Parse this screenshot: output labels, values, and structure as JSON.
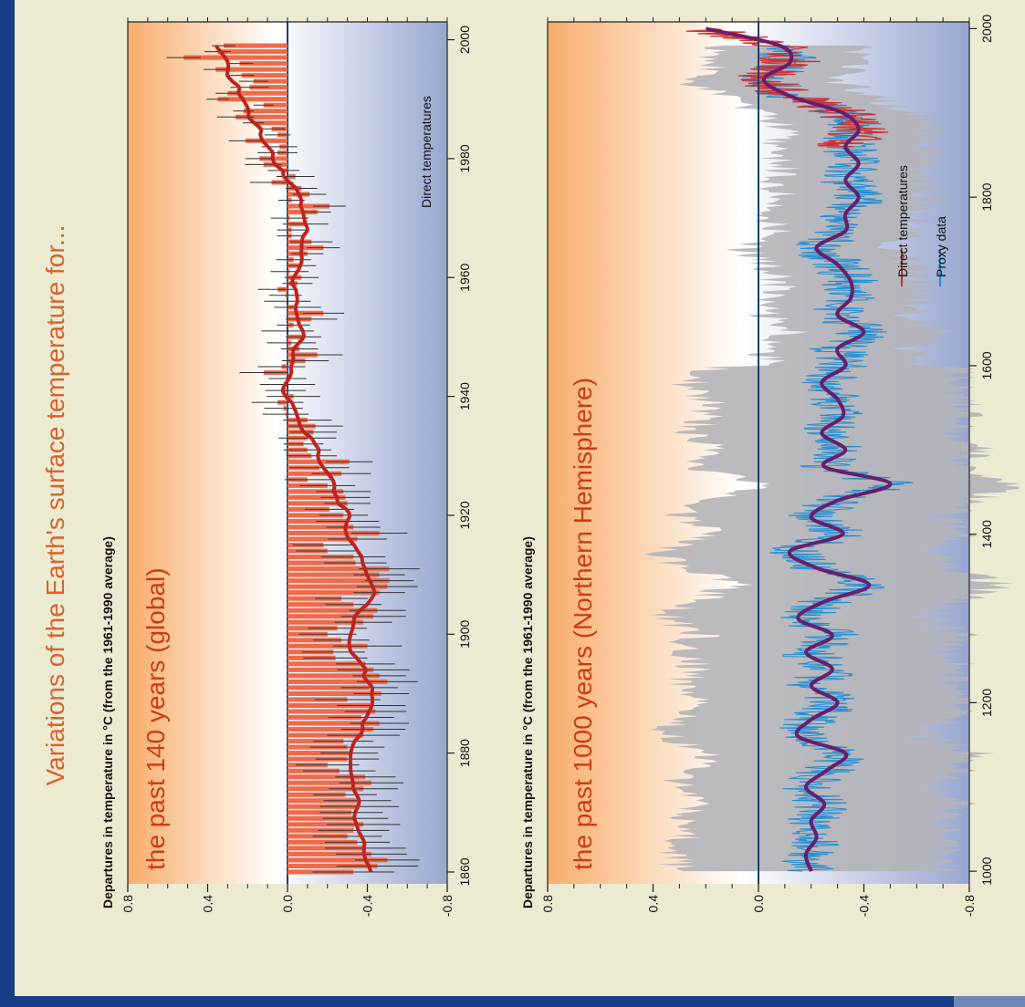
{
  "page": {
    "title": "Variations of the Earth's surface temperature for...",
    "colors": {
      "frame": "#173e86",
      "background": "#ecebd2",
      "title": "#d9622b",
      "panel_title": "#cc3d12"
    }
  },
  "chart_data": [
    {
      "type": "bar",
      "panel_title": "the past 140 years (global)",
      "ylabel": "Departures in temperature in °C (from the 1961-1990 average)",
      "legend": [
        {
          "label": "Direct temperatures",
          "color": "#ef6a4a"
        }
      ],
      "xlim": [
        1858,
        2003
      ],
      "ylim": [
        -0.8,
        0.8
      ],
      "xticks": [
        1860,
        1880,
        1900,
        1920,
        1940,
        1960,
        1980,
        2000
      ],
      "yticks": [
        0.8,
        0.4,
        0.0,
        -0.4,
        -0.8
      ],
      "ytick_labels": [
        "0.8",
        "0.4",
        "0.0",
        "-0.4",
        "-0.8"
      ],
      "x_start": 1860,
      "values": [
        -0.33,
        -0.45,
        -0.5,
        -0.42,
        -0.39,
        -0.35,
        -0.3,
        -0.33,
        -0.38,
        -0.34,
        -0.32,
        -0.36,
        -0.35,
        -0.29,
        -0.38,
        -0.42,
        -0.39,
        -0.26,
        -0.2,
        -0.3,
        -0.31,
        -0.3,
        -0.28,
        -0.38,
        -0.43,
        -0.46,
        -0.37,
        -0.44,
        -0.42,
        -0.3,
        -0.47,
        -0.41,
        -0.5,
        -0.46,
        -0.43,
        -0.39,
        -0.24,
        -0.23,
        -0.4,
        -0.27,
        -0.2,
        -0.25,
        -0.38,
        -0.43,
        -0.45,
        -0.33,
        -0.27,
        -0.46,
        -0.5,
        -0.51,
        -0.46,
        -0.51,
        -0.34,
        -0.33,
        -0.2,
        -0.18,
        -0.35,
        -0.46,
        -0.33,
        -0.3,
        -0.28,
        -0.21,
        -0.3,
        -0.29,
        -0.28,
        -0.2,
        -0.1,
        -0.27,
        -0.16,
        -0.31,
        -0.12,
        -0.1,
        -0.08,
        -0.1,
        -0.13,
        -0.14,
        -0.1,
        0.01,
        0.02,
        0.05,
        -0.03,
        0.01,
        0.0,
        0.0,
        0.12,
        0.03,
        -0.09,
        -0.15,
        -0.06,
        -0.02,
        -0.08,
        0.0,
        -0.03,
        -0.12,
        -0.18,
        -0.05,
        0.0,
        0.01,
        0.05,
        -0.05,
        -0.07,
        -0.01,
        -0.07,
        -0.03,
        -0.1,
        -0.18,
        -0.12,
        -0.02,
        -0.02,
        -0.09,
        -0.01,
        -0.15,
        -0.21,
        -0.02,
        -0.11,
        -0.07,
        0.08,
        -0.04,
        0.02,
        0.12,
        0.14,
        0.05,
        0.04,
        0.21,
        0.05,
        0.08,
        0.17,
        0.26,
        0.22,
        0.12,
        0.35,
        0.3,
        0.19,
        0.17,
        0.23,
        0.36,
        0.24,
        0.52,
        0.35,
        0.32
      ]
    },
    {
      "type": "line",
      "panel_title": "the past 1000 years (Northern Hemisphere)",
      "ylabel": "Departures in temperature in °C (from the 1961-1990 average)",
      "series": [
        {
          "name": "Direct temperatures",
          "color": "#d2302f",
          "x_range": [
            1860,
            2000
          ]
        },
        {
          "name": "Proxy data",
          "color": "#1f8fd6",
          "x_range": [
            1000,
            1980
          ]
        }
      ],
      "xlim": [
        985,
        2008
      ],
      "ylim": [
        -0.8,
        0.8
      ],
      "xticks": [
        1000,
        1200,
        1400,
        1600,
        1800,
        2000
      ],
      "yticks": [
        0.8,
        0.4,
        0.0,
        -0.4,
        -0.8
      ],
      "ytick_labels": [
        "0.8",
        "0.4",
        "0.0",
        "-0.4",
        "-0.8"
      ],
      "smoothed_x": [
        1000,
        1020,
        1040,
        1060,
        1080,
        1100,
        1120,
        1140,
        1160,
        1180,
        1200,
        1220,
        1240,
        1260,
        1280,
        1300,
        1320,
        1340,
        1360,
        1380,
        1400,
        1420,
        1440,
        1460,
        1480,
        1500,
        1520,
        1540,
        1560,
        1580,
        1600,
        1620,
        1640,
        1660,
        1680,
        1700,
        1720,
        1740,
        1760,
        1780,
        1800,
        1820,
        1840,
        1860,
        1880,
        1900,
        1920,
        1940,
        1960,
        1980,
        2000
      ],
      "smoothed_y": [
        -0.2,
        -0.18,
        -0.22,
        -0.2,
        -0.25,
        -0.18,
        -0.26,
        -0.33,
        -0.15,
        -0.2,
        -0.3,
        -0.2,
        -0.28,
        -0.18,
        -0.28,
        -0.15,
        -0.25,
        -0.42,
        -0.22,
        -0.12,
        -0.32,
        -0.2,
        -0.3,
        -0.5,
        -0.25,
        -0.33,
        -0.24,
        -0.32,
        -0.3,
        -0.24,
        -0.33,
        -0.3,
        -0.4,
        -0.3,
        -0.35,
        -0.35,
        -0.3,
        -0.22,
        -0.33,
        -0.33,
        -0.38,
        -0.33,
        -0.38,
        -0.33,
        -0.38,
        -0.32,
        -0.12,
        -0.02,
        -0.12,
        -0.08,
        0.2
      ],
      "uncertainty_range_approx": {
        "before_1600": 0.5,
        "after_1600": 0.28
      }
    }
  ]
}
